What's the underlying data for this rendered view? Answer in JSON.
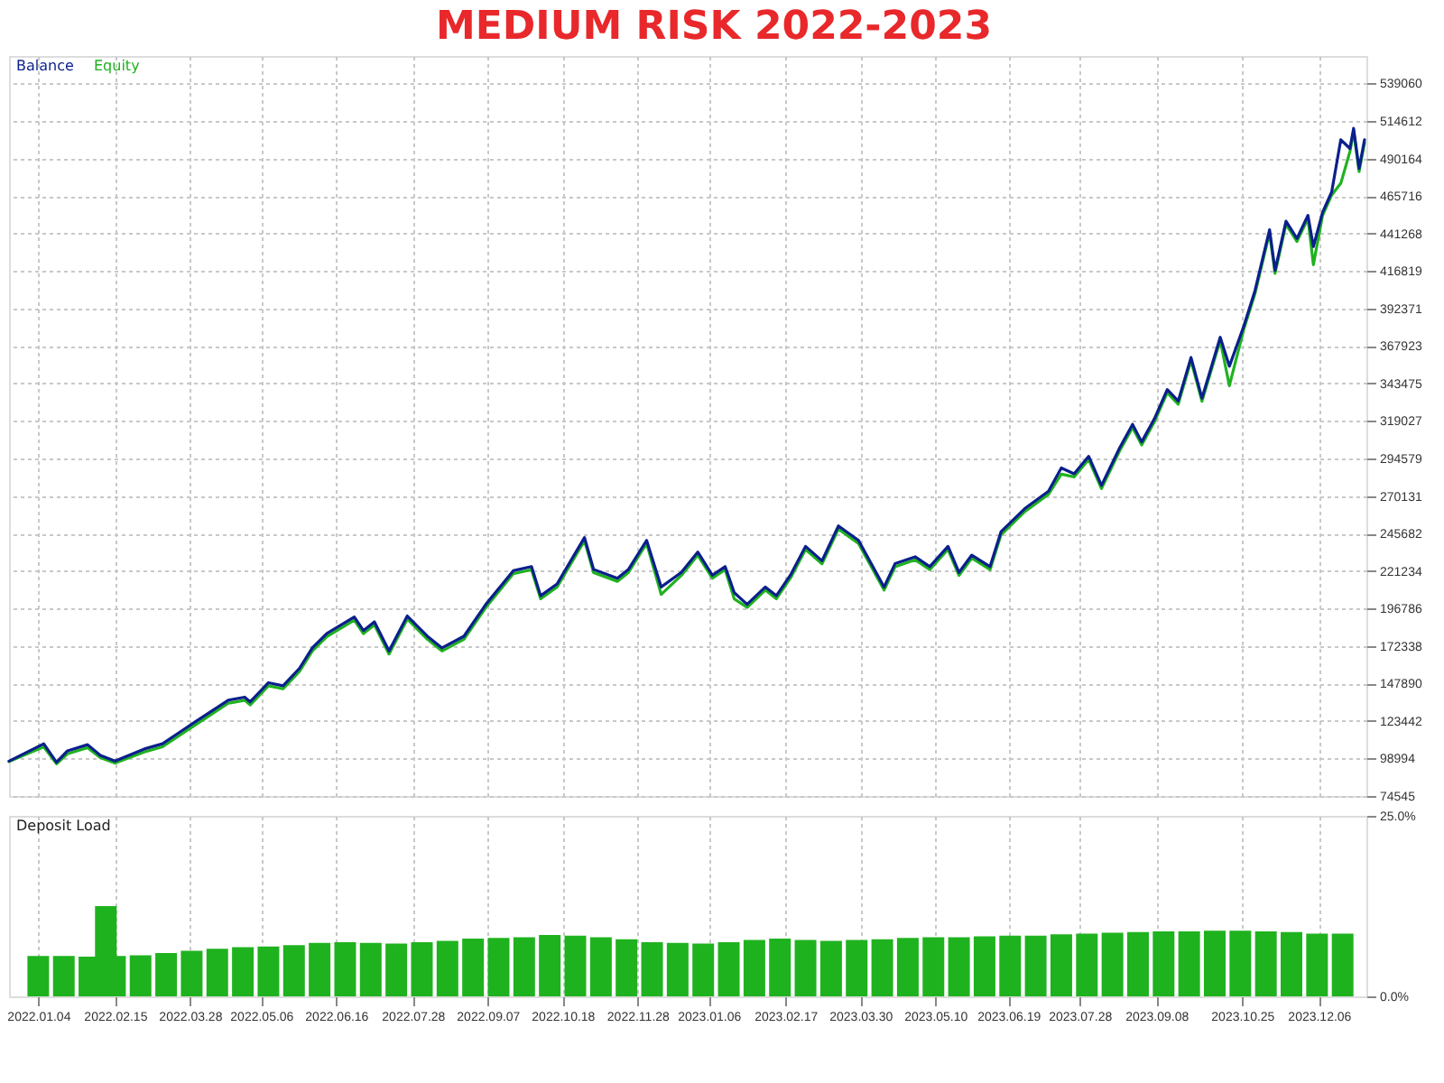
{
  "chart_data": [
    {
      "type": "line",
      "title": "MEDIUM RISK 2022-2023",
      "grid": true,
      "tick_labels": "y",
      "x": [
        "2021-12-19",
        "2022-01-07",
        "2022-01-14",
        "2022-01-20",
        "2022-01-31",
        "2022-02-07",
        "2022-02-15",
        "2022-03-03",
        "2022-03-13",
        "2022-03-23",
        "2022-04-01",
        "2022-04-18",
        "2022-04-27",
        "2022-04-30",
        "2022-05-10",
        "2022-05-18",
        "2022-05-27",
        "2022-06-03",
        "2022-06-11",
        "2022-06-26",
        "2022-07-01",
        "2022-07-07",
        "2022-07-15",
        "2022-07-25",
        "2022-08-05",
        "2022-08-13",
        "2022-08-25",
        "2022-09-06",
        "2022-09-21",
        "2022-10-01",
        "2022-10-06",
        "2022-10-15",
        "2022-10-30",
        "2022-11-04",
        "2022-11-17",
        "2022-11-23",
        "2022-12-03",
        "2022-12-11",
        "2022-12-22",
        "2022-12-31",
        "2023-01-08",
        "2023-01-15",
        "2023-01-20",
        "2023-01-27",
        "2023-02-06",
        "2023-02-12",
        "2023-02-20",
        "2023-02-28",
        "2023-03-09",
        "2023-03-18",
        "2023-03-29",
        "2023-04-12",
        "2023-04-18",
        "2023-04-29",
        "2023-05-07",
        "2023-05-17",
        "2023-05-23",
        "2023-05-30",
        "2023-06-09",
        "2023-06-15",
        "2023-06-28",
        "2023-07-11",
        "2023-07-18",
        "2023-07-25",
        "2023-08-02",
        "2023-08-09",
        "2023-08-19",
        "2023-08-26",
        "2023-08-31",
        "2023-09-07",
        "2023-09-14",
        "2023-09-20",
        "2023-09-27",
        "2023-10-03",
        "2023-10-13",
        "2023-10-18",
        "2023-10-26",
        "2023-11-01",
        "2023-11-09",
        "2023-11-12",
        "2023-11-18",
        "2023-11-24",
        "2023-11-30",
        "2023-12-03",
        "2023-12-08",
        "2023-12-13",
        "2023-12-18",
        "2023-12-23",
        "2023-12-25",
        "2023-12-28",
        "2023-12-31"
      ],
      "xlim": [
        "2021-12-19",
        "2024-01-01"
      ],
      "xticks": [
        {
          "value": "2022-01-04",
          "label": null
        },
        {
          "value": "2022-02-15",
          "label": null
        },
        {
          "value": "2022-03-28",
          "label": null
        },
        {
          "value": "2022-05-06",
          "label": null
        },
        {
          "value": "2022-06-16",
          "label": null
        },
        {
          "value": "2022-07-28",
          "label": null
        },
        {
          "value": "2022-09-07",
          "label": null
        },
        {
          "value": "2022-10-18",
          "label": null
        },
        {
          "value": "2022-11-28",
          "label": null
        },
        {
          "value": "2023-01-06",
          "label": null
        },
        {
          "value": "2023-02-17",
          "label": null
        },
        {
          "value": "2023-03-30",
          "label": null
        },
        {
          "value": "2023-05-10",
          "label": null
        },
        {
          "value": "2023-06-19",
          "label": null
        },
        {
          "value": "2023-07-28",
          "label": null
        },
        {
          "value": "2023-09-08",
          "label": null
        },
        {
          "value": "2023-10-25",
          "label": null
        },
        {
          "value": "2023-12-06",
          "label": null
        }
      ],
      "ylim": [
        74545,
        557000
      ],
      "yticks": [
        74545,
        98994,
        123442,
        147890,
        172338,
        196786,
        221234,
        245682,
        270131,
        294579,
        319027,
        343475,
        367923,
        392371,
        416819,
        441268,
        465716,
        490164,
        514612,
        539060
      ],
      "series": [
        {
          "name": "Equity",
          "color": "#1fb21f",
          "values": [
            97000,
            106600,
            95500,
            102000,
            106000,
            99500,
            96000,
            103200,
            106600,
            114600,
            121700,
            135000,
            137000,
            133900,
            146400,
            144400,
            155800,
            169100,
            178500,
            189200,
            180400,
            186100,
            167100,
            189900,
            176700,
            169100,
            176700,
            197500,
            219400,
            222100,
            203100,
            210800,
            241000,
            220200,
            214500,
            220200,
            239200,
            206000,
            218300,
            231600,
            216500,
            222100,
            203000,
            197500,
            208800,
            203100,
            217100,
            235300,
            225900,
            248600,
            239200,
            208800,
            224000,
            228500,
            222100,
            235300,
            218300,
            229600,
            222100,
            244800,
            259900,
            271300,
            284400,
            282600,
            294000,
            275000,
            299700,
            314800,
            303400,
            318600,
            337500,
            330000,
            358400,
            331900,
            371600,
            342000,
            379200,
            401900,
            441700,
            415200,
            447300,
            436000,
            451100,
            420900,
            453000,
            466300,
            474000,
            494700,
            507800,
            481600,
            500400
          ]
        },
        {
          "name": "Balance",
          "color": "#0b1f8c",
          "values": [
            97300,
            108600,
            96500,
            104000,
            108000,
            101000,
            97300,
            105200,
            108600,
            116600,
            123700,
            137000,
            139000,
            135900,
            148400,
            146400,
            157800,
            171100,
            180500,
            191200,
            182400,
            188100,
            169100,
            191900,
            178700,
            171100,
            178700,
            199500,
            221400,
            224100,
            205100,
            212800,
            243000,
            222200,
            216500,
            222200,
            241200,
            210800,
            220300,
            233600,
            218500,
            224100,
            207100,
            199500,
            210800,
            205100,
            219100,
            237300,
            227900,
            250600,
            241200,
            210800,
            226000,
            230500,
            224100,
            237300,
            220300,
            231600,
            224100,
            246800,
            261900,
            273300,
            288400,
            284600,
            296000,
            277000,
            301700,
            316800,
            305400,
            320600,
            339500,
            332000,
            360400,
            333900,
            373600,
            354700,
            381200,
            403900,
            443700,
            417200,
            449300,
            438000,
            453100,
            432700,
            455000,
            468300,
            502400,
            496700,
            509800,
            483600,
            502400
          ]
        }
      ]
    },
    {
      "type": "bar",
      "title": "Deposit Load",
      "grid": "x",
      "x": [
        "2022-01-04",
        "2022-01-18",
        "2022-02-01",
        "2022-02-10",
        "2022-02-15",
        "2022-03-01",
        "2022-03-15",
        "2022-03-29",
        "2022-04-12",
        "2022-04-26",
        "2022-05-10",
        "2022-05-24",
        "2022-06-07",
        "2022-06-21",
        "2022-07-05",
        "2022-07-19",
        "2022-08-02",
        "2022-08-16",
        "2022-08-30",
        "2022-09-13",
        "2022-09-27",
        "2022-10-11",
        "2022-10-25",
        "2022-11-08",
        "2022-11-22",
        "2022-12-06",
        "2022-12-20",
        "2023-01-03",
        "2023-01-17",
        "2023-01-31",
        "2023-02-14",
        "2023-02-28",
        "2023-03-14",
        "2023-03-28",
        "2023-04-11",
        "2023-04-25",
        "2023-05-09",
        "2023-05-23",
        "2023-06-06",
        "2023-06-20",
        "2023-07-04",
        "2023-07-18",
        "2023-08-01",
        "2023-08-15",
        "2023-08-29",
        "2023-09-12",
        "2023-09-26",
        "2023-10-10",
        "2023-10-24",
        "2023-11-07",
        "2023-11-21",
        "2023-12-05",
        "2023-12-19"
      ],
      "values": [
        5.6,
        5.6,
        5.5,
        12.5,
        5.6,
        5.7,
        6.0,
        6.3,
        6.6,
        6.8,
        6.9,
        7.1,
        7.4,
        7.5,
        7.4,
        7.3,
        7.5,
        7.7,
        8.0,
        8.1,
        8.2,
        8.5,
        8.4,
        8.2,
        7.9,
        7.5,
        7.4,
        7.3,
        7.5,
        7.8,
        8.0,
        7.8,
        7.7,
        7.8,
        7.9,
        8.1,
        8.2,
        8.2,
        8.3,
        8.4,
        8.4,
        8.6,
        8.7,
        8.8,
        8.9,
        9.0,
        9.0,
        9.1,
        9.1,
        9.0,
        8.9,
        8.7,
        8.7
      ],
      "color": "#1fb21f",
      "xlim": [
        "2021-12-19",
        "2024-01-01"
      ],
      "xticks": [
        {
          "value": "2022-01-04",
          "label": "2022.01.04"
        },
        {
          "value": "2022-02-15",
          "label": "2022.02.15"
        },
        {
          "value": "2022-03-28",
          "label": "2022.03.28"
        },
        {
          "value": "2022-05-06",
          "label": "2022.05.06"
        },
        {
          "value": "2022-06-16",
          "label": "2022.06.16"
        },
        {
          "value": "2022-07-28",
          "label": "2022.07.28"
        },
        {
          "value": "2022-09-07",
          "label": "2022.09.07"
        },
        {
          "value": "2022-10-18",
          "label": "2022.10.18"
        },
        {
          "value": "2022-11-28",
          "label": "2022.11.28"
        },
        {
          "value": "2023-01-06",
          "label": "2023.01.06"
        },
        {
          "value": "2023-02-17",
          "label": "2023.02.17"
        },
        {
          "value": "2023-03-30",
          "label": "2023.03.30"
        },
        {
          "value": "2023-05-10",
          "label": "2023.05.10"
        },
        {
          "value": "2023-06-19",
          "label": "2023.06.19"
        },
        {
          "value": "2023-07-28",
          "label": "2023.07.28"
        },
        {
          "value": "2023-09-08",
          "label": "2023.09.08"
        },
        {
          "value": "2023-10-25",
          "label": "2023.10.25"
        },
        {
          "value": "2023-12-06",
          "label": "2023.12.06"
        }
      ],
      "ylim": [
        0,
        25
      ],
      "yticks": [
        {
          "value": 0,
          "label": "0.0%"
        },
        {
          "value": 25,
          "label": "25.0%"
        }
      ]
    }
  ]
}
